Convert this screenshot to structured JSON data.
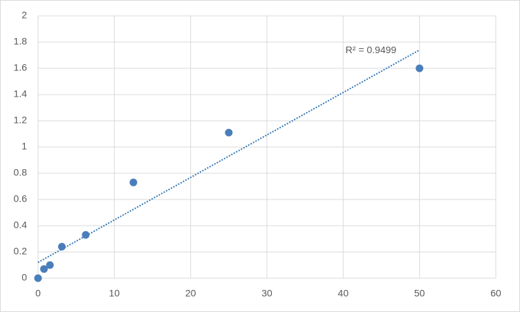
{
  "chart_data": {
    "type": "scatter",
    "x": [
      0,
      0.78,
      1.56,
      3.125,
      6.25,
      12.5,
      25,
      50
    ],
    "series": [
      {
        "color": "#4a7ebb",
        "values": [
          0,
          0.07,
          0.1,
          0.24,
          0.33,
          0.73,
          1.11,
          1.6
        ]
      }
    ],
    "trendline": {
      "x": [
        0,
        50
      ],
      "y": [
        0.12,
        1.74
      ],
      "color": "#2e75b6",
      "label": "R² = 0.9499"
    },
    "xlim": [
      0,
      60
    ],
    "xticks": [
      0,
      10,
      20,
      30,
      40,
      50,
      60
    ],
    "ylim": [
      0,
      2
    ],
    "yticks": [
      0,
      0.2,
      0.4,
      0.6,
      0.8,
      1,
      1.2,
      1.4,
      1.6,
      1.8,
      2
    ],
    "grid": true
  }
}
